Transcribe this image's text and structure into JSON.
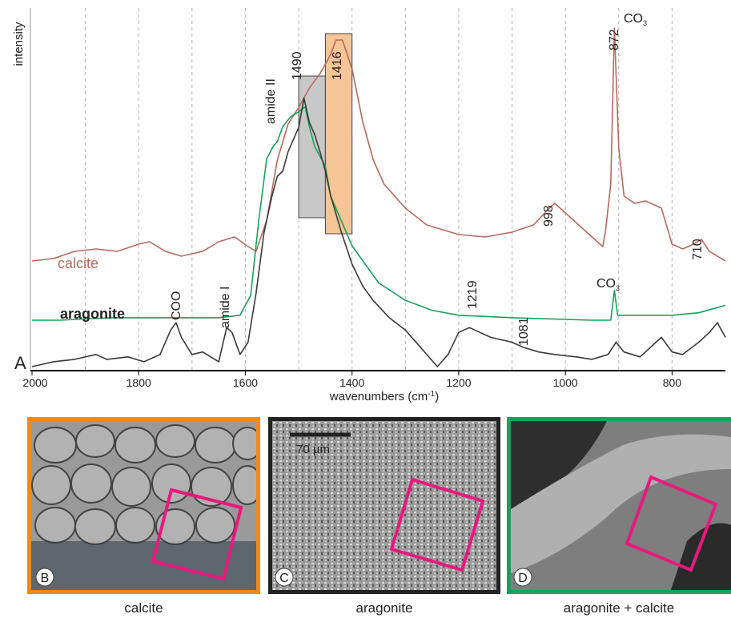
{
  "chart_data": {
    "type": "line",
    "panel_letter": "A",
    "xlabel": "wavenumbers (cm",
    "xlabel_sup": "-1",
    "xlabel_close": ")",
    "ylabel": "intensity",
    "xlim": [
      2000,
      700
    ],
    "x_reversed": true,
    "x_ticks": [
      2000,
      1800,
      1600,
      1400,
      1200,
      1000,
      800
    ],
    "grid_x": [
      1900,
      1800,
      1700,
      1600,
      1500,
      1400,
      1300,
      1200,
      1100,
      1000,
      900,
      800
    ],
    "series": [
      {
        "name": "calcite",
        "color": "#b86a5a",
        "points": [
          [
            2000,
            0.08
          ],
          [
            1960,
            0.09
          ],
          [
            1920,
            0.12
          ],
          [
            1880,
            0.13
          ],
          [
            1840,
            0.12
          ],
          [
            1800,
            0.15
          ],
          [
            1780,
            0.16
          ],
          [
            1750,
            0.12
          ],
          [
            1720,
            0.1
          ],
          [
            1680,
            0.12
          ],
          [
            1650,
            0.16
          ],
          [
            1620,
            0.18
          ],
          [
            1595,
            0.14
          ],
          [
            1580,
            0.12
          ],
          [
            1560,
            0.25
          ],
          [
            1540,
            0.5
          ],
          [
            1520,
            0.65
          ],
          [
            1500,
            0.72
          ],
          [
            1480,
            0.8
          ],
          [
            1460,
            0.86
          ],
          [
            1440,
            0.94
          ],
          [
            1430,
            1.0
          ],
          [
            1418,
            1.0
          ],
          [
            1400,
            0.88
          ],
          [
            1380,
            0.66
          ],
          [
            1360,
            0.5
          ],
          [
            1340,
            0.4
          ],
          [
            1300,
            0.3
          ],
          [
            1260,
            0.23
          ],
          [
            1200,
            0.19
          ],
          [
            1150,
            0.18
          ],
          [
            1100,
            0.2
          ],
          [
            1060,
            0.23
          ],
          [
            1030,
            0.3
          ],
          [
            1020,
            0.32
          ],
          [
            1000,
            0.28
          ],
          [
            970,
            0.22
          ],
          [
            945,
            0.17
          ],
          [
            930,
            0.14
          ],
          [
            925,
            0.2
          ],
          [
            915,
            0.4
          ],
          [
            908,
            1.05
          ],
          [
            900,
            0.55
          ],
          [
            890,
            0.35
          ],
          [
            870,
            0.32
          ],
          [
            850,
            0.33
          ],
          [
            820,
            0.3
          ],
          [
            800,
            0.15
          ],
          [
            780,
            0.13
          ],
          [
            760,
            0.15
          ],
          [
            745,
            0.17
          ],
          [
            730,
            0.12
          ],
          [
            700,
            0.08
          ]
        ]
      },
      {
        "name": "",
        "color": "#1aa05a",
        "points": [
          [
            2000,
            0.0
          ],
          [
            1950,
            0.0
          ],
          [
            1900,
            0.005
          ],
          [
            1850,
            0.01
          ],
          [
            1800,
            0.01
          ],
          [
            1750,
            0.01
          ],
          [
            1700,
            0.01
          ],
          [
            1650,
            0.01
          ],
          [
            1610,
            0.02
          ],
          [
            1590,
            0.1
          ],
          [
            1575,
            0.4
          ],
          [
            1560,
            0.65
          ],
          [
            1548,
            0.7
          ],
          [
            1540,
            0.72
          ],
          [
            1530,
            0.78
          ],
          [
            1515,
            0.82
          ],
          [
            1500,
            0.84
          ],
          [
            1488,
            0.86
          ],
          [
            1480,
            0.78
          ],
          [
            1470,
            0.7
          ],
          [
            1460,
            0.66
          ],
          [
            1450,
            0.62
          ],
          [
            1440,
            0.5
          ],
          [
            1420,
            0.4
          ],
          [
            1400,
            0.3
          ],
          [
            1380,
            0.24
          ],
          [
            1350,
            0.15
          ],
          [
            1300,
            0.08
          ],
          [
            1250,
            0.04
          ],
          [
            1200,
            0.02
          ],
          [
            1100,
            0.01
          ],
          [
            950,
            0.0
          ],
          [
            915,
            0.0
          ],
          [
            908,
            0.12
          ],
          [
            902,
            0.02
          ],
          [
            850,
            0.02
          ],
          [
            800,
            0.02
          ],
          [
            750,
            0.03
          ],
          [
            700,
            0.06
          ]
        ]
      },
      {
        "name": "aragonite",
        "color": "#3a3a3a",
        "points": [
          [
            2000,
            0.0
          ],
          [
            1960,
            0.02
          ],
          [
            1920,
            0.03
          ],
          [
            1880,
            0.05
          ],
          [
            1860,
            0.03
          ],
          [
            1820,
            0.04
          ],
          [
            1790,
            0.02
          ],
          [
            1760,
            0.05
          ],
          [
            1740,
            0.15
          ],
          [
            1730,
            0.18
          ],
          [
            1720,
            0.12
          ],
          [
            1700,
            0.05
          ],
          [
            1680,
            0.06
          ],
          [
            1650,
            0.02
          ],
          [
            1635,
            0.16
          ],
          [
            1625,
            0.14
          ],
          [
            1610,
            0.05
          ],
          [
            1595,
            0.1
          ],
          [
            1580,
            0.3
          ],
          [
            1565,
            0.55
          ],
          [
            1550,
            0.7
          ],
          [
            1540,
            0.78
          ],
          [
            1530,
            0.8
          ],
          [
            1520,
            0.88
          ],
          [
            1510,
            0.93
          ],
          [
            1500,
            0.98
          ],
          [
            1490,
            1.1
          ],
          [
            1480,
            1.0
          ],
          [
            1470,
            0.95
          ],
          [
            1460,
            0.88
          ],
          [
            1450,
            0.8
          ],
          [
            1440,
            0.7
          ],
          [
            1420,
            0.55
          ],
          [
            1400,
            0.42
          ],
          [
            1380,
            0.33
          ],
          [
            1360,
            0.27
          ],
          [
            1330,
            0.2
          ],
          [
            1300,
            0.15
          ],
          [
            1260,
            0.05
          ],
          [
            1240,
            0.0
          ],
          [
            1220,
            0.05
          ],
          [
            1200,
            0.14
          ],
          [
            1180,
            0.16
          ],
          [
            1160,
            0.14
          ],
          [
            1140,
            0.12
          ],
          [
            1100,
            0.1
          ],
          [
            1080,
            0.08
          ],
          [
            1050,
            0.06
          ],
          [
            1020,
            0.05
          ],
          [
            980,
            0.04
          ],
          [
            950,
            0.03
          ],
          [
            920,
            0.05
          ],
          [
            905,
            0.1
          ],
          [
            890,
            0.06
          ],
          [
            860,
            0.04
          ],
          [
            820,
            0.12
          ],
          [
            800,
            0.06
          ],
          [
            780,
            0.05
          ],
          [
            750,
            0.1
          ],
          [
            730,
            0.14
          ],
          [
            715,
            0.18
          ],
          [
            700,
            0.12
          ]
        ]
      }
    ],
    "annotations": [
      "COO",
      "amide I",
      "amide II",
      "1490",
      "1416",
      "872",
      "CO",
      "3",
      "998",
      "710",
      "1219",
      "1081",
      "CO",
      "3"
    ],
    "highlight_bands": [
      {
        "label": "1490",
        "from": 1500,
        "to": 1450,
        "color": "#c8c8c8"
      },
      {
        "label": "1416",
        "from": 1450,
        "to": 1400,
        "color": "#f5c596"
      }
    ]
  },
  "panels": [
    {
      "letter": "B",
      "caption": "calcite",
      "border_color": "#f08a1e"
    },
    {
      "letter": "C",
      "caption": "aragonite",
      "border_color": "#222222",
      "scale_bar": "70 µm"
    },
    {
      "letter": "D",
      "caption": "aragonite + calcite",
      "border_color": "#1aa05a"
    }
  ],
  "roi_color": "#e8197f"
}
